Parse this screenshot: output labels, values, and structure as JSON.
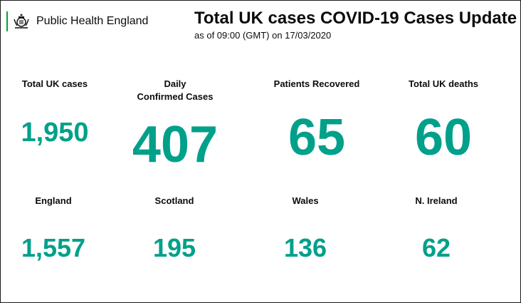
{
  "header": {
    "org_name": "Public Health England",
    "title": "Total UK cases COVID-19 Cases Update",
    "subtitle": "as of 09:00 (GMT) on 17/03/2020"
  },
  "stats_top": [
    {
      "label": "Total UK cases",
      "value": "1,950"
    },
    {
      "label_line1": "Daily",
      "label_line2": "Confirmed Cases",
      "value": "407"
    },
    {
      "label": "Patients Recovered",
      "value": "65"
    },
    {
      "label": "Total UK deaths",
      "value": "60"
    }
  ],
  "stats_nations": [
    {
      "label": "England",
      "value": "1,557"
    },
    {
      "label": "Scotland",
      "value": "195"
    },
    {
      "label": "Wales",
      "value": "136"
    },
    {
      "label": "N. Ireland",
      "value": "62"
    }
  ],
  "colors": {
    "accent": "#00a08a",
    "logo_bar": "#00a33b",
    "text": "#0b0c0c"
  },
  "icons": {
    "logo": "royal-crest-icon"
  }
}
